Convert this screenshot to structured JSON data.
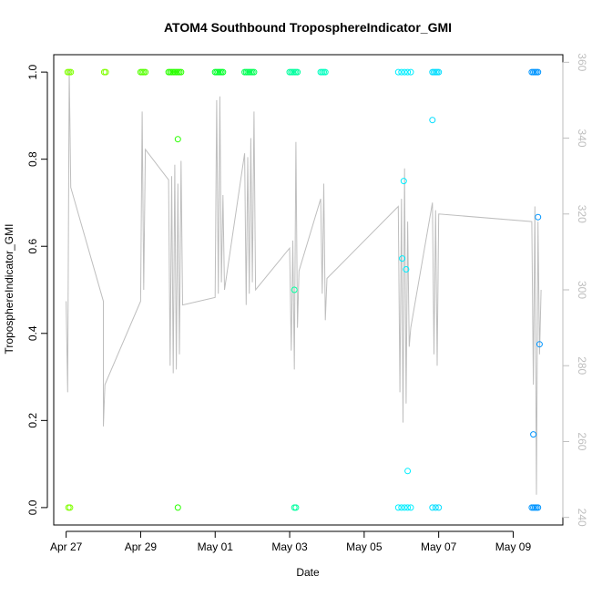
{
  "chart_data": {
    "type": "scatter",
    "title": "ATOM4 Southbound TroposphereIndicator_GMI",
    "xlabel": "Date",
    "ylabel": "TroposphereIndicator_GMI",
    "x_ticks": [
      "Apr 27",
      "Apr 29",
      "May 01",
      "May 03",
      "May 05",
      "May 07",
      "May 09"
    ],
    "x_tick_dates": [
      "2018-04-27",
      "2018-04-29",
      "2018-05-01",
      "2018-05-03",
      "2018-05-05",
      "2018-05-07",
      "2018-05-09"
    ],
    "xlim": [
      "2018-04-26T16:00",
      "2018-05-10T08:00"
    ],
    "ylim": [
      -0.04,
      1.04
    ],
    "y_ticks": [
      "0.0",
      "0.2",
      "0.4",
      "0.6",
      "0.8",
      "1.0"
    ],
    "y2_ticks": [
      "240",
      "260",
      "280",
      "300",
      "320",
      "340",
      "360"
    ],
    "y2lim": [
      238,
      362
    ],
    "grid": false,
    "legend": "none",
    "colors": {
      "axis": "#000000",
      "right_axis": "#bebebe",
      "line": "#bebebe"
    },
    "point_series": [
      {
        "color": "#80ff00",
        "points": [
          [
            "2018-04-27T01:00",
            1
          ],
          [
            "2018-04-27T02:00",
            1
          ],
          [
            "2018-04-27T03:00",
            1
          ],
          [
            "2018-04-27T01:30",
            0
          ],
          [
            "2018-04-27T02:30",
            0
          ],
          [
            "2018-04-28T00:30",
            1
          ],
          [
            "2018-04-28T01:30",
            1
          ]
        ]
      },
      {
        "color": "#55ff00",
        "points": [
          [
            "2018-04-29T00:00",
            1
          ],
          [
            "2018-04-29T01:00",
            1
          ],
          [
            "2018-04-29T02:00",
            1
          ],
          [
            "2018-04-29T03:00",
            1
          ]
        ]
      },
      {
        "color": "#2aff00",
        "points": [
          [
            "2018-04-29T18:00",
            1
          ],
          [
            "2018-04-29T19:00",
            1
          ],
          [
            "2018-04-29T20:00",
            1
          ],
          [
            "2018-04-29T21:00",
            1
          ],
          [
            "2018-04-29T22:00",
            1
          ],
          [
            "2018-04-29T23:00",
            1
          ],
          [
            "2018-04-30T00:00",
            1
          ],
          [
            "2018-04-30T01:00",
            1
          ],
          [
            "2018-04-30T02:00",
            1
          ],
          [
            "2018-04-30T00:00",
            0.846
          ],
          [
            "2018-04-30T00:00",
            0
          ]
        ]
      },
      {
        "color": "#00ff2a",
        "points": [
          [
            "2018-05-01T00:00",
            1
          ],
          [
            "2018-05-01T01:00",
            1
          ],
          [
            "2018-05-01T02:00",
            1
          ],
          [
            "2018-05-01T03:00",
            1
          ],
          [
            "2018-05-01T04:00",
            1
          ],
          [
            "2018-05-01T05:00",
            1
          ]
        ]
      },
      {
        "color": "#00ff55",
        "points": [
          [
            "2018-05-01T19:00",
            1
          ],
          [
            "2018-05-01T20:00",
            1
          ],
          [
            "2018-05-01T21:00",
            1
          ],
          [
            "2018-05-01T22:00",
            1
          ],
          [
            "2018-05-01T23:00",
            1
          ],
          [
            "2018-05-02T00:00",
            1
          ],
          [
            "2018-05-02T01:00",
            1
          ]
        ]
      },
      {
        "color": "#00ff9f",
        "points": [
          [
            "2018-05-03T00:00",
            1
          ],
          [
            "2018-05-03T01:00",
            1
          ],
          [
            "2018-05-03T02:00",
            1
          ],
          [
            "2018-05-03T03:00",
            1
          ],
          [
            "2018-05-03T04:00",
            1
          ],
          [
            "2018-05-03T05:00",
            1
          ],
          [
            "2018-05-03T03:00",
            0.5
          ],
          [
            "2018-05-03T03:00",
            0
          ],
          [
            "2018-05-03T04:00",
            0
          ]
        ]
      },
      {
        "color": "#00ffc0",
        "points": [
          [
            "2018-05-03T20:00",
            1
          ],
          [
            "2018-05-03T21:00",
            1
          ],
          [
            "2018-05-03T22:00",
            1
          ],
          [
            "2018-05-03T23:00",
            1
          ]
        ]
      },
      {
        "color": "#00eeff",
        "points": [
          [
            "2018-05-05T22:00",
            1
          ],
          [
            "2018-05-06T00:00",
            1
          ],
          [
            "2018-05-06T02:00",
            1
          ],
          [
            "2018-05-06T04:00",
            1
          ],
          [
            "2018-05-06T06:00",
            1
          ],
          [
            "2018-05-05T22:00",
            0
          ],
          [
            "2018-05-06T00:00",
            0
          ],
          [
            "2018-05-06T02:00",
            0
          ],
          [
            "2018-05-06T04:00",
            0
          ],
          [
            "2018-05-06T06:00",
            0
          ],
          [
            "2018-05-06T00:30",
            0.572
          ],
          [
            "2018-05-06T01:30",
            0.75
          ],
          [
            "2018-05-06T03:00",
            0.547
          ],
          [
            "2018-05-06T04:00",
            0.084
          ]
        ]
      },
      {
        "color": "#00ddff",
        "points": [
          [
            "2018-05-06T20:00",
            1
          ],
          [
            "2018-05-06T21:00",
            1
          ],
          [
            "2018-05-06T22:00",
            1
          ],
          [
            "2018-05-06T23:00",
            1
          ],
          [
            "2018-05-07T00:00",
            1
          ],
          [
            "2018-05-06T20:00",
            0
          ],
          [
            "2018-05-06T22:00",
            0
          ],
          [
            "2018-05-07T00:00",
            0
          ],
          [
            "2018-05-06T20:00",
            0.89
          ]
        ]
      },
      {
        "color": "#0095ff",
        "points": [
          [
            "2018-05-09T12:00",
            1
          ],
          [
            "2018-05-09T13:00",
            1
          ],
          [
            "2018-05-09T14:00",
            1
          ],
          [
            "2018-05-09T15:00",
            1
          ],
          [
            "2018-05-09T16:00",
            1
          ],
          [
            "2018-05-09T12:00",
            0
          ],
          [
            "2018-05-09T13:00",
            0
          ],
          [
            "2018-05-09T14:00",
            0
          ],
          [
            "2018-05-09T15:00",
            0
          ],
          [
            "2018-05-09T16:00",
            0
          ],
          [
            "2018-05-09T13:00",
            0.168
          ],
          [
            "2018-05-09T16:00",
            0.667
          ],
          [
            "2018-05-09T17:00",
            0.375
          ]
        ]
      }
    ],
    "line_series": {
      "axis": "right",
      "points": [
        [
          "2018-04-27T00:00",
          297
        ],
        [
          "2018-04-27T01:00",
          273
        ],
        [
          "2018-04-27T02:00",
          358
        ],
        [
          "2018-04-27T03:00",
          327
        ],
        [
          "2018-04-28T00:00",
          297
        ],
        [
          "2018-04-28T00:00",
          264
        ],
        [
          "2018-04-28T01:00",
          275
        ],
        [
          "2018-04-29T00:00",
          297
        ],
        [
          "2018-04-29T01:00",
          347
        ],
        [
          "2018-04-29T02:00",
          300
        ],
        [
          "2018-04-29T03:00",
          337
        ],
        [
          "2018-04-29T18:00",
          329
        ],
        [
          "2018-04-29T19:00",
          280
        ],
        [
          "2018-04-29T20:00",
          330
        ],
        [
          "2018-04-29T21:00",
          278
        ],
        [
          "2018-04-29T22:00",
          333
        ],
        [
          "2018-04-29T23:00",
          279
        ],
        [
          "2018-04-30T00:00",
          328
        ],
        [
          "2018-04-30T01:00",
          283
        ],
        [
          "2018-04-30T02:00",
          334
        ],
        [
          "2018-04-30T03:00",
          296
        ],
        [
          "2018-05-01T00:00",
          298
        ],
        [
          "2018-05-01T01:00",
          350
        ],
        [
          "2018-05-01T02:00",
          299
        ],
        [
          "2018-05-01T03:00",
          351
        ],
        [
          "2018-05-01T04:00",
          302
        ],
        [
          "2018-05-01T05:00",
          325
        ],
        [
          "2018-05-01T06:00",
          300
        ],
        [
          "2018-05-01T19:00",
          336
        ],
        [
          "2018-05-01T20:00",
          296
        ],
        [
          "2018-05-01T21:00",
          335
        ],
        [
          "2018-05-01T22:00",
          299
        ],
        [
          "2018-05-01T23:00",
          340
        ],
        [
          "2018-05-02T00:00",
          302
        ],
        [
          "2018-05-02T01:00",
          347
        ],
        [
          "2018-05-02T02:00",
          300
        ],
        [
          "2018-05-03T00:00",
          311
        ],
        [
          "2018-05-03T01:00",
          284
        ],
        [
          "2018-05-03T02:00",
          313
        ],
        [
          "2018-05-03T03:00",
          279
        ],
        [
          "2018-05-03T04:00",
          339
        ],
        [
          "2018-05-03T05:00",
          290
        ],
        [
          "2018-05-03T06:00",
          305
        ],
        [
          "2018-05-03T20:00",
          324
        ],
        [
          "2018-05-03T21:00",
          299
        ],
        [
          "2018-05-03T22:00",
          328
        ],
        [
          "2018-05-03T23:00",
          292
        ],
        [
          "2018-05-04T00:00",
          303
        ],
        [
          "2018-05-05T22:00",
          322
        ],
        [
          "2018-05-05T23:00",
          273
        ],
        [
          "2018-05-06T00:00",
          324
        ],
        [
          "2018-05-06T01:00",
          265
        ],
        [
          "2018-05-06T02:00",
          332
        ],
        [
          "2018-05-06T03:00",
          270
        ],
        [
          "2018-05-06T04:00",
          318
        ],
        [
          "2018-05-06T05:00",
          285
        ],
        [
          "2018-05-06T06:00",
          290
        ],
        [
          "2018-05-06T20:00",
          323
        ],
        [
          "2018-05-06T21:00",
          283
        ],
        [
          "2018-05-06T22:00",
          321
        ],
        [
          "2018-05-06T23:00",
          280
        ],
        [
          "2018-05-07T00:00",
          320
        ],
        [
          "2018-05-09T12:00",
          318
        ],
        [
          "2018-05-09T13:00",
          275
        ],
        [
          "2018-05-09T14:00",
          322
        ],
        [
          "2018-05-09T15:00",
          246
        ],
        [
          "2018-05-09T16:00",
          318
        ],
        [
          "2018-05-09T17:00",
          283
        ],
        [
          "2018-05-09T18:00",
          300
        ]
      ]
    }
  }
}
